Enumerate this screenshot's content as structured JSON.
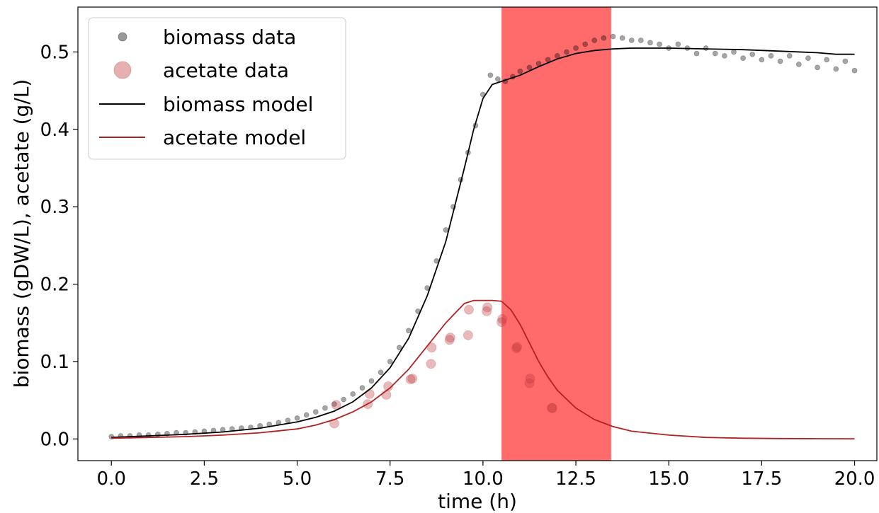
{
  "chart_data": {
    "type": "scatter",
    "xlabel": "time (h)",
    "ylabel": "biomass (gDW/L), acetate (g/L)",
    "xlim": [
      -0.9,
      20.6
    ],
    "ylim": [
      -0.028,
      0.558
    ],
    "x_ticks": [
      0.0,
      2.5,
      5.0,
      7.5,
      10.0,
      12.5,
      15.0,
      17.5,
      20.0
    ],
    "x_tick_labels": [
      "0.0",
      "2.5",
      "5.0",
      "7.5",
      "10.0",
      "12.5",
      "15.0",
      "17.5",
      "20.0"
    ],
    "y_ticks": [
      0.0,
      0.1,
      0.2,
      0.3,
      0.4,
      0.5
    ],
    "y_tick_labels": [
      "0.0",
      "0.1",
      "0.2",
      "0.3",
      "0.4",
      "0.5"
    ],
    "grid": false,
    "legend_position": "top-left",
    "shaded_region": {
      "x_start": 10.5,
      "x_end": 13.45,
      "color": "#ff6b6b"
    },
    "series": [
      {
        "name": "biomass data",
        "kind": "scatter",
        "color": "#000000",
        "opacity": 0.35,
        "x": [
          0.0,
          0.25,
          0.5,
          0.75,
          1.0,
          1.25,
          1.5,
          1.75,
          2.0,
          2.25,
          2.5,
          2.75,
          3.0,
          3.25,
          3.5,
          3.75,
          4.0,
          4.25,
          4.5,
          4.75,
          5.0,
          5.25,
          5.5,
          5.75,
          6.0,
          6.25,
          6.5,
          6.75,
          7.0,
          7.25,
          7.5,
          7.75,
          8.0,
          8.25,
          8.5,
          8.75,
          9.0,
          9.2,
          9.4,
          9.6,
          9.8,
          10.0,
          10.2,
          10.4,
          10.6,
          10.8,
          11.0,
          11.25,
          11.5,
          11.75,
          12.0,
          12.25,
          12.5,
          12.75,
          13.0,
          13.25,
          13.5,
          13.75,
          14.0,
          14.25,
          14.5,
          14.75,
          15.0,
          15.25,
          15.5,
          15.75,
          16.0,
          16.25,
          16.5,
          16.75,
          17.0,
          17.25,
          17.5,
          17.75,
          18.0,
          18.25,
          18.5,
          18.75,
          19.0,
          19.25,
          19.5,
          19.75,
          20.0
        ],
        "y": [
          0.003,
          0.004,
          0.004,
          0.005,
          0.005,
          0.006,
          0.007,
          0.008,
          0.008,
          0.009,
          0.01,
          0.011,
          0.012,
          0.013,
          0.014,
          0.015,
          0.017,
          0.019,
          0.021,
          0.024,
          0.027,
          0.031,
          0.035,
          0.04,
          0.045,
          0.051,
          0.058,
          0.066,
          0.075,
          0.086,
          0.1,
          0.118,
          0.14,
          0.165,
          0.195,
          0.23,
          0.27,
          0.3,
          0.335,
          0.37,
          0.405,
          0.445,
          0.47,
          0.465,
          0.462,
          0.468,
          0.475,
          0.48,
          0.485,
          0.49,
          0.495,
          0.5,
          0.505,
          0.51,
          0.515,
          0.518,
          0.52,
          0.518,
          0.515,
          0.515,
          0.512,
          0.51,
          0.505,
          0.51,
          0.505,
          0.498,
          0.505,
          0.498,
          0.495,
          0.5,
          0.492,
          0.497,
          0.49,
          0.495,
          0.488,
          0.495,
          0.484,
          0.492,
          0.48,
          0.49,
          0.478,
          0.488,
          0.476
        ]
      },
      {
        "name": "acetate data",
        "kind": "scatter",
        "color": "#c0393b",
        "opacity": 0.35,
        "x": [
          6.0,
          6.05,
          6.9,
          6.95,
          7.4,
          7.45,
          8.05,
          8.1,
          8.6,
          8.62,
          9.1,
          9.12,
          9.6,
          9.62,
          10.1,
          10.12,
          10.5,
          10.52,
          10.9,
          10.92,
          11.25,
          11.27,
          11.85,
          11.87
        ],
        "y": [
          0.02,
          0.044,
          0.045,
          0.058,
          0.057,
          0.068,
          0.077,
          0.078,
          0.097,
          0.118,
          0.128,
          0.131,
          0.134,
          0.167,
          0.165,
          0.17,
          0.151,
          0.155,
          0.117,
          0.119,
          0.072,
          0.078,
          0.04,
          0.04
        ]
      },
      {
        "name": "biomass model",
        "kind": "line",
        "color": "#000000",
        "x": [
          0.0,
          1.0,
          2.0,
          3.0,
          4.0,
          5.0,
          5.5,
          6.0,
          6.5,
          7.0,
          7.5,
          8.0,
          8.5,
          9.0,
          9.5,
          9.75,
          10.0,
          10.25,
          10.5,
          11.0,
          11.5,
          12.0,
          12.5,
          13.0,
          13.5,
          14.0,
          15.0,
          16.0,
          17.0,
          18.0,
          19.0,
          19.5,
          20.0
        ],
        "y": [
          0.002,
          0.004,
          0.006,
          0.009,
          0.014,
          0.022,
          0.028,
          0.036,
          0.048,
          0.066,
          0.092,
          0.13,
          0.185,
          0.255,
          0.35,
          0.4,
          0.44,
          0.458,
          0.462,
          0.47,
          0.481,
          0.491,
          0.498,
          0.502,
          0.504,
          0.505,
          0.505,
          0.504,
          0.503,
          0.501,
          0.499,
          0.497,
          0.497
        ]
      },
      {
        "name": "acetate model",
        "kind": "line",
        "color": "#b22222",
        "x": [
          0.0,
          1.0,
          2.0,
          3.0,
          4.0,
          5.0,
          5.5,
          6.0,
          6.5,
          7.0,
          7.5,
          8.0,
          8.5,
          9.0,
          9.5,
          9.75,
          10.0,
          10.25,
          10.5,
          10.75,
          11.0,
          11.25,
          11.5,
          11.75,
          12.0,
          12.5,
          13.0,
          13.5,
          14.0,
          15.0,
          16.0,
          17.0,
          18.0,
          19.0,
          20.0
        ],
        "y": [
          0.001,
          0.002,
          0.003,
          0.005,
          0.008,
          0.013,
          0.018,
          0.025,
          0.035,
          0.048,
          0.066,
          0.09,
          0.12,
          0.15,
          0.175,
          0.179,
          0.179,
          0.179,
          0.178,
          0.167,
          0.148,
          0.124,
          0.1,
          0.08,
          0.063,
          0.04,
          0.025,
          0.016,
          0.01,
          0.005,
          0.002,
          0.001,
          0.0005,
          0.0003,
          0.0002
        ]
      }
    ]
  }
}
